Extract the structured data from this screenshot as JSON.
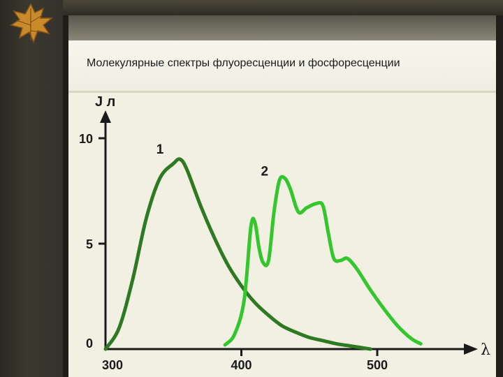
{
  "slide": {
    "title": "Молекулярные спектры флуоресценции и фосфоресценции",
    "decoration_icon": "autumn-leaf-icon"
  },
  "chart_data": {
    "type": "line",
    "title": "",
    "xlabel": "λ",
    "ylabel": "J л",
    "xlim": [
      300,
      540
    ],
    "ylim": [
      0,
      10
    ],
    "x_ticks": [
      "300",
      "400",
      "500"
    ],
    "y_ticks": [
      "0",
      "5",
      "10"
    ],
    "grid": false,
    "series": [
      {
        "name": "1",
        "color": "#2e7a23",
        "points": [
          [
            300,
            0.0
          ],
          [
            310,
            1.0
          ],
          [
            320,
            3.3
          ],
          [
            330,
            6.2
          ],
          [
            340,
            8.1
          ],
          [
            350,
            8.8
          ],
          [
            355,
            9.0
          ],
          [
            360,
            8.5
          ],
          [
            370,
            6.8
          ],
          [
            380,
            5.3
          ],
          [
            390,
            4.0
          ],
          [
            400,
            3.0
          ],
          [
            410,
            2.2
          ],
          [
            420,
            1.6
          ],
          [
            430,
            1.1
          ],
          [
            440,
            0.8
          ],
          [
            450,
            0.55
          ],
          [
            460,
            0.4
          ],
          [
            470,
            0.25
          ],
          [
            480,
            0.15
          ],
          [
            490,
            0.05
          ],
          [
            495,
            0.0
          ]
        ]
      },
      {
        "name": "2",
        "color": "#33c62d",
        "points": [
          [
            388,
            0.2
          ],
          [
            395,
            0.7
          ],
          [
            402,
            2.3
          ],
          [
            407,
            5.8
          ],
          [
            410,
            6.0
          ],
          [
            413,
            4.8
          ],
          [
            416,
            4.1
          ],
          [
            420,
            4.2
          ],
          [
            424,
            6.5
          ],
          [
            428,
            8.0
          ],
          [
            432,
            8.1
          ],
          [
            436,
            7.6
          ],
          [
            442,
            6.5
          ],
          [
            448,
            6.7
          ],
          [
            455,
            6.9
          ],
          [
            460,
            6.8
          ],
          [
            464,
            5.5
          ],
          [
            468,
            4.3
          ],
          [
            473,
            4.2
          ],
          [
            478,
            4.3
          ],
          [
            485,
            3.8
          ],
          [
            495,
            2.8
          ],
          [
            505,
            1.9
          ],
          [
            515,
            1.1
          ],
          [
            525,
            0.5
          ],
          [
            532,
            0.25
          ]
        ]
      }
    ]
  }
}
